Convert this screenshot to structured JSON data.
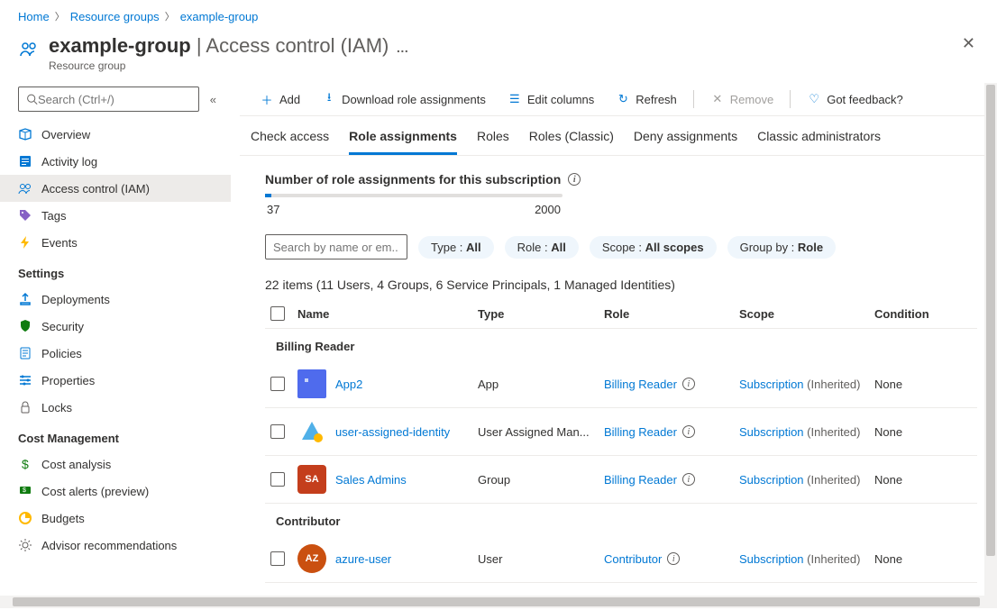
{
  "breadcrumb": {
    "home": "Home",
    "rg": "Resource groups",
    "name": "example-group"
  },
  "header": {
    "title": "example-group",
    "suffix": " | Access control (IAM)",
    "subtitle": "Resource group"
  },
  "sidebar": {
    "search_placeholder": "Search (Ctrl+/)",
    "items": [
      {
        "icon": "cube",
        "color": "#0078d4",
        "label": "Overview"
      },
      {
        "icon": "log",
        "color": "#0078d4",
        "label": "Activity log"
      },
      {
        "icon": "people",
        "color": "#0078d4",
        "label": "Access control (IAM)",
        "active": true
      },
      {
        "icon": "tag",
        "color": "#8661c5",
        "label": "Tags"
      },
      {
        "icon": "bolt",
        "color": "#ffb900",
        "label": "Events"
      }
    ],
    "section_settings": "Settings",
    "settings_items": [
      {
        "icon": "upload",
        "color": "#0078d4",
        "label": "Deployments"
      },
      {
        "icon": "shield",
        "color": "#107c10",
        "label": "Security"
      },
      {
        "icon": "policy",
        "color": "#0078d4",
        "label": "Policies"
      },
      {
        "icon": "props",
        "color": "#0078d4",
        "label": "Properties"
      },
      {
        "icon": "lock",
        "color": "#605e5c",
        "label": "Locks"
      }
    ],
    "section_cost": "Cost Management",
    "cost_items": [
      {
        "icon": "dollar",
        "color": "#107c10",
        "label": "Cost analysis"
      },
      {
        "icon": "alert",
        "color": "#107c10",
        "label": "Cost alerts (preview)"
      },
      {
        "icon": "budget",
        "color": "#ffb900",
        "label": "Budgets"
      },
      {
        "icon": "advisor",
        "color": "#605e5c",
        "label": "Advisor recommendations"
      }
    ]
  },
  "toolbar": {
    "add": "Add",
    "download": "Download role assignments",
    "edit": "Edit columns",
    "refresh": "Refresh",
    "remove": "Remove",
    "feedback": "Got feedback?"
  },
  "tabs": {
    "check": "Check access",
    "role_assign": "Role assignments",
    "roles": "Roles",
    "roles_classic": "Roles (Classic)",
    "deny": "Deny assignments",
    "classic_admin": "Classic administrators"
  },
  "subscription": {
    "heading": "Number of role assignments for this subscription",
    "current": "37",
    "max": "2000",
    "fill_pct": 2
  },
  "filters": {
    "search_placeholder": "Search by name or em...",
    "type_label": "Type : ",
    "type_value": "All",
    "role_label": "Role : ",
    "role_value": "All",
    "scope_label": "Scope : ",
    "scope_value": "All scopes",
    "group_label": "Group by : ",
    "group_value": "Role"
  },
  "summary": "22 items (11 Users, 4 Groups, 6 Service Principals, 1 Managed Identities)",
  "columns": {
    "name": "Name",
    "type": "Type",
    "role": "Role",
    "scope": "Scope",
    "condition": "Condition"
  },
  "group1": "Billing Reader",
  "group2": "Contributor",
  "rows": [
    {
      "avatar": "sq-blue",
      "initials": "",
      "name": "App2",
      "type": "App",
      "role": "Billing Reader",
      "scope": "Subscription",
      "inherited": "(Inherited)",
      "condition": "None"
    },
    {
      "avatar": "tri",
      "initials": "",
      "name": "user-assigned-identity",
      "type": "User Assigned Man...",
      "role": "Billing Reader",
      "scope": "Subscription",
      "inherited": "(Inherited)",
      "condition": "None"
    },
    {
      "avatar": "red",
      "initials": "SA",
      "name": "Sales Admins",
      "type": "Group",
      "role": "Billing Reader",
      "scope": "Subscription",
      "inherited": "(Inherited)",
      "condition": "None"
    }
  ],
  "rows2": [
    {
      "avatar": "orange",
      "initials": "AZ",
      "name": "azure-user",
      "type": "User",
      "role": "Contributor",
      "scope": "Subscription",
      "inherited": "(Inherited)",
      "condition": "None"
    }
  ]
}
